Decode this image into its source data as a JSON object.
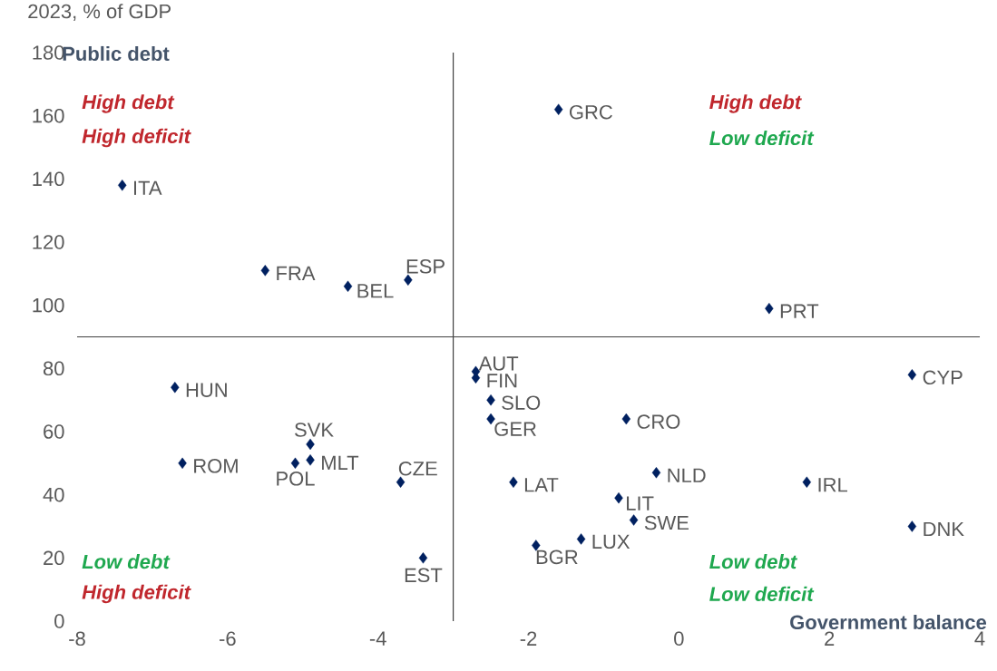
{
  "chart_data": {
    "type": "scatter",
    "subtitle": "2023, % of GDP",
    "xlabel": "Government balance",
    "ylabel": "Public debt",
    "xlim": [
      -8,
      4
    ],
    "xticks": [
      -8,
      -6,
      -4,
      -2,
      0,
      2,
      4
    ],
    "ylim": [
      0,
      180
    ],
    "yticks": [
      0,
      20,
      40,
      60,
      80,
      100,
      120,
      140,
      160,
      180
    ],
    "marker": "diamond",
    "series": [
      {
        "color": "#002060",
        "x": [
          -1.6,
          -7.4,
          -5.5,
          -4.4,
          -3.6,
          1.2,
          -2.7,
          -2.7,
          -2.5,
          -2.5,
          -0.7,
          3.1,
          -6.7,
          -4.9,
          -4.9,
          -5.1,
          -6.6,
          -3.7,
          -2.2,
          -0.3,
          1.7,
          -0.8,
          -0.6,
          3.1,
          -1.3,
          -1.9,
          -3.4
        ],
        "values": [
          162,
          138,
          111,
          106,
          108,
          99,
          79,
          77,
          70,
          64,
          64,
          78,
          74,
          56,
          51,
          50,
          50,
          44,
          44,
          47,
          44,
          39,
          32,
          30,
          26,
          24,
          20
        ]
      }
    ],
    "ref_lines": [
      {
        "axis": "x",
        "value": -3,
        "color": "#404040"
      },
      {
        "axis": "y",
        "value": 90,
        "color": "#404040"
      }
    ],
    "annotations": [
      {
        "text": "GRC",
        "x": -1.6,
        "y": 162
      },
      {
        "text": "ITA",
        "x": -7.4,
        "y": 138
      },
      {
        "text": "FRA",
        "x": -5.5,
        "y": 111
      },
      {
        "text": "BEL",
        "x": -4.4,
        "y": 106
      },
      {
        "text": "ESP",
        "x": -3.6,
        "y": 108
      },
      {
        "text": "PRT",
        "x": 1.2,
        "y": 99
      },
      {
        "text": "AUT",
        "x": -2.7,
        "y": 79
      },
      {
        "text": "FIN",
        "x": -2.7,
        "y": 77
      },
      {
        "text": "SLO",
        "x": -2.5,
        "y": 70
      },
      {
        "text": "GER",
        "x": -2.5,
        "y": 64
      },
      {
        "text": "CRO",
        "x": -0.7,
        "y": 64
      },
      {
        "text": "CYP",
        "x": 3.1,
        "y": 78
      },
      {
        "text": "HUN",
        "x": -6.7,
        "y": 74
      },
      {
        "text": "SVK",
        "x": -4.9,
        "y": 56
      },
      {
        "text": "MLT",
        "x": -4.9,
        "y": 51
      },
      {
        "text": "POL",
        "x": -5.1,
        "y": 50
      },
      {
        "text": "ROM",
        "x": -6.6,
        "y": 50
      },
      {
        "text": "CZE",
        "x": -3.7,
        "y": 44
      },
      {
        "text": "LAT",
        "x": -2.2,
        "y": 44
      },
      {
        "text": "NLD",
        "x": -0.3,
        "y": 47
      },
      {
        "text": "IRL",
        "x": 1.7,
        "y": 44
      },
      {
        "text": "LIT",
        "x": -0.8,
        "y": 39
      },
      {
        "text": "SWE",
        "x": -0.6,
        "y": 32
      },
      {
        "text": "DNK",
        "x": 3.1,
        "y": 30
      },
      {
        "text": "LUX",
        "x": -1.3,
        "y": 26
      },
      {
        "text": "BGR",
        "x": -1.9,
        "y": 24
      },
      {
        "text": "EST",
        "x": -3.4,
        "y": 20
      },
      "High debt",
      "High deficit",
      "High debt",
      "Low deficit",
      "Low debt",
      "High deficit",
      "Low debt",
      "Low deficit"
    ]
  }
}
